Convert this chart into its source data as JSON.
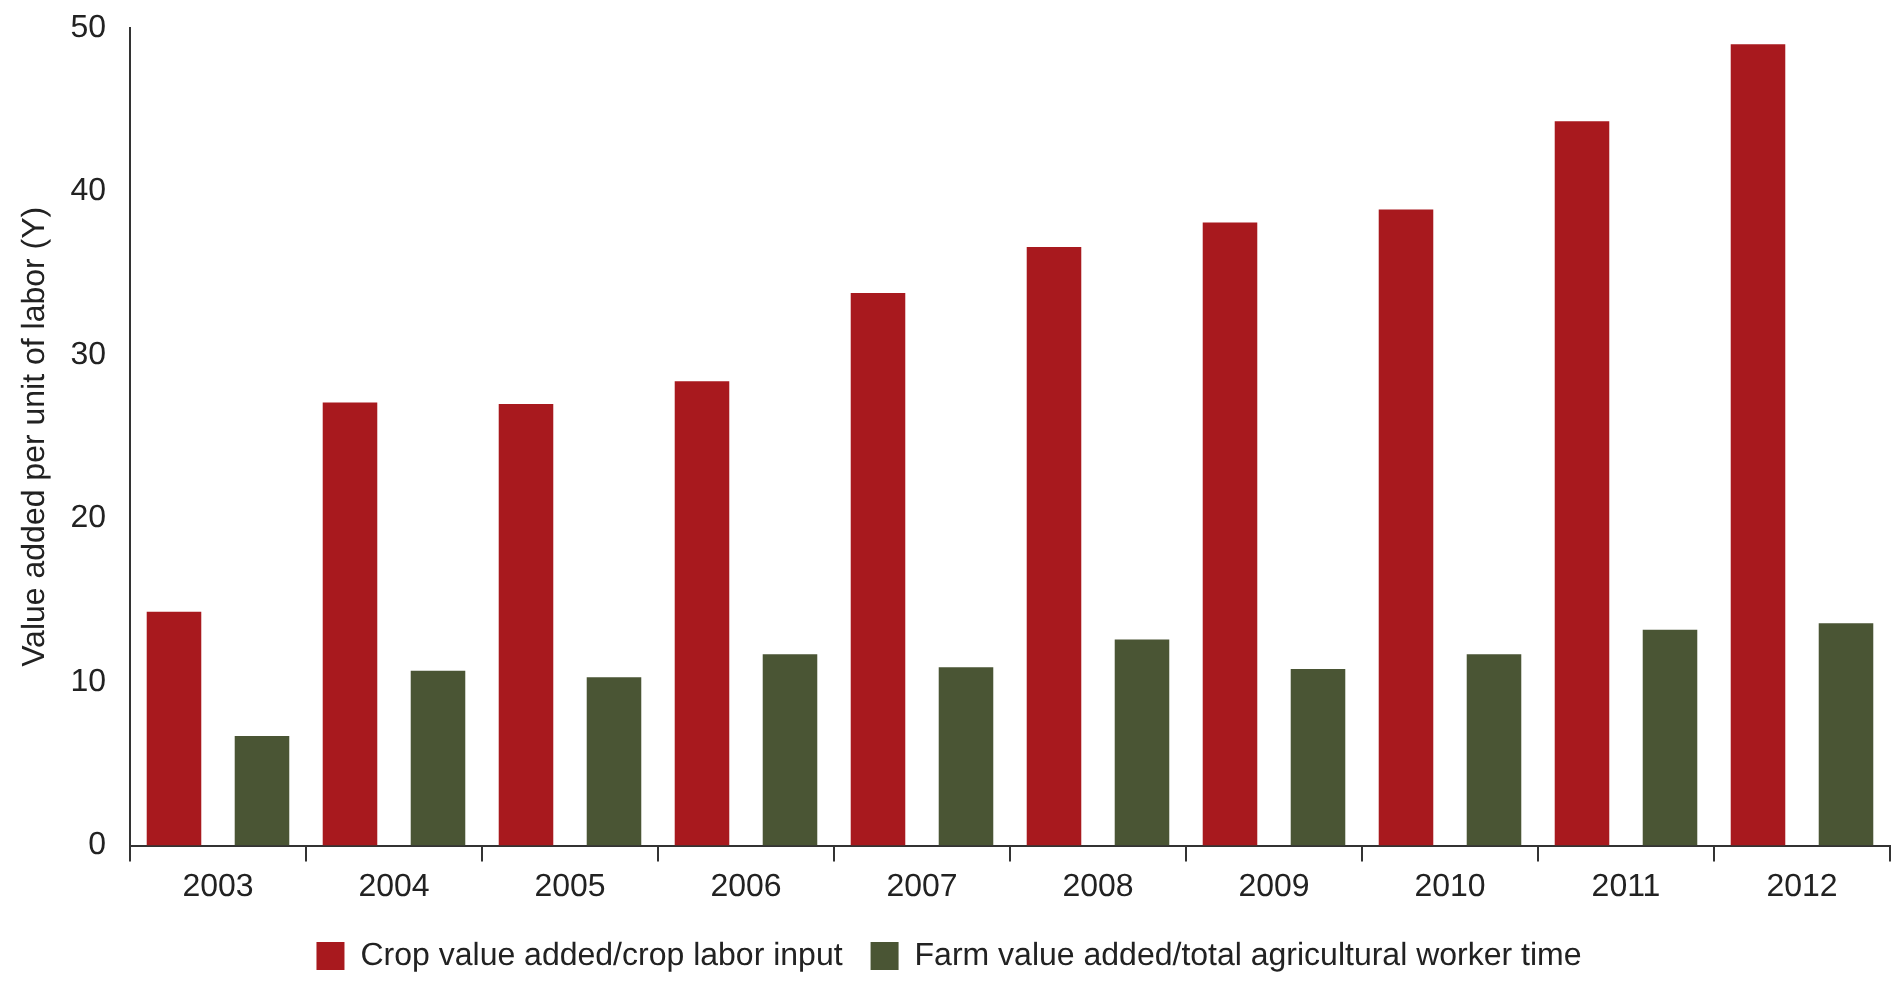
{
  "chart_data": {
    "type": "bar",
    "ylabel": "Value added per unit of labor (Y)",
    "categories": [
      "2003",
      "2004",
      "2005",
      "2006",
      "2007",
      "2008",
      "2009",
      "2010",
      "2011",
      "2012"
    ],
    "series": [
      {
        "name": "Crop value added/crop labor input",
        "color": "#a8191e",
        "values": [
          14.3,
          27.1,
          27.0,
          28.4,
          33.8,
          36.6,
          38.1,
          38.9,
          44.3,
          49.0
        ]
      },
      {
        "name": "Farm value added/total agricultural worker time",
        "color": "#4a5534",
        "values": [
          6.7,
          10.7,
          10.3,
          11.7,
          10.9,
          12.6,
          10.8,
          11.7,
          13.2,
          13.6
        ]
      }
    ],
    "ylim": [
      0,
      50
    ],
    "yticks": [
      0,
      10,
      20,
      30,
      40,
      50
    ],
    "grid": false,
    "legend": "bottom"
  }
}
